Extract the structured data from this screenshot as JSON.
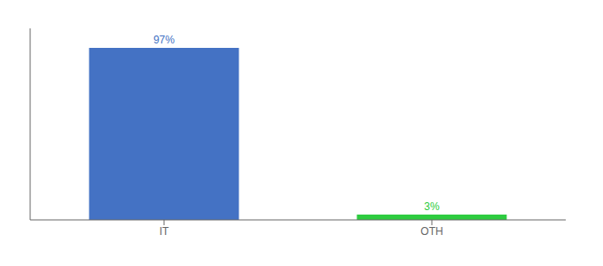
{
  "chart_data": {
    "type": "bar",
    "categories": [
      "IT",
      "OTH"
    ],
    "values": [
      97,
      3
    ],
    "value_labels": [
      "97%",
      "3%"
    ],
    "colors": [
      "#4472c4",
      "#2ecc40"
    ],
    "ylim": [
      0,
      108
    ],
    "data_labels": true,
    "tick_labels": "x",
    "grid": false
  }
}
